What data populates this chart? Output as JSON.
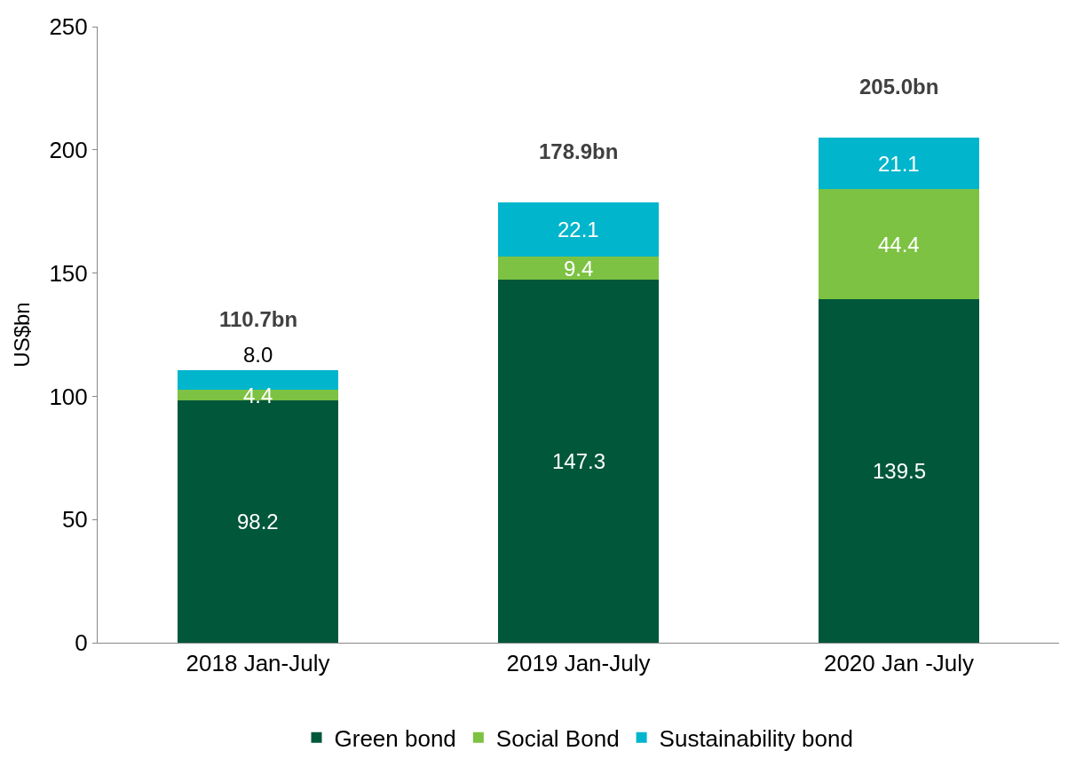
{
  "chart_data": {
    "type": "bar",
    "stacked": true,
    "ylabel": "US$bn",
    "categories": [
      "2018 Jan-July",
      "2019 Jan-July",
      "2020 Jan -July"
    ],
    "series": [
      {
        "name": "Green bond",
        "color": "#00573a",
        "values": [
          98.2,
          147.3,
          139.5
        ],
        "value_labels": [
          "98.2",
          "147.3",
          "139.5"
        ]
      },
      {
        "name": "Social Bond",
        "color": "#7dc242",
        "values": [
          4.4,
          9.4,
          44.4
        ],
        "value_labels": [
          "4.4",
          "9.4",
          "44.4"
        ]
      },
      {
        "name": "Sustainability bond",
        "color": "#00b5cc",
        "values": [
          8.0,
          22.1,
          21.1
        ],
        "value_labels": [
          "8.0",
          "22.1",
          "21.1"
        ]
      }
    ],
    "totals": [
      "110.7bn",
      "178.9bn",
      "205.0bn"
    ],
    "ylim": [
      0,
      250
    ],
    "yticks": [
      0,
      50,
      100,
      150,
      200,
      250
    ],
    "legend": "bottom"
  }
}
